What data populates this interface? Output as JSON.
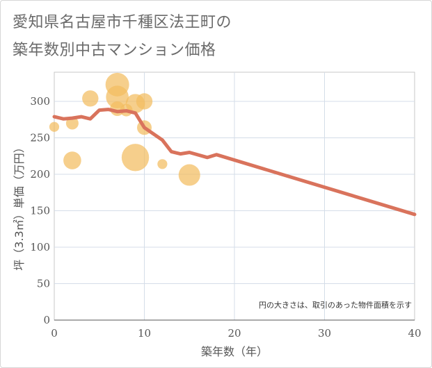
{
  "title_line1": "愛知県名古屋市千種区法王町の",
  "title_line2": "築年数別中古マンション価格",
  "chart_data": {
    "type": "scatter+line",
    "xlabel": "築年数（年）",
    "ylabel": "坪（3.3㎡）単価（万円）",
    "xlim": [
      0,
      40
    ],
    "ylim": [
      0,
      340
    ],
    "x_ticks": [
      0,
      10,
      20,
      30,
      40
    ],
    "y_ticks": [
      0,
      50,
      100,
      150,
      200,
      250,
      300
    ],
    "grid": true,
    "note": "円の大きさは、取引のあった物件面積を示す",
    "bubble_color": "#f3bd5f",
    "line_color": "#d9735c",
    "bubbles": [
      {
        "x": 0,
        "y": 265,
        "size": 1
      },
      {
        "x": 2,
        "y": 270,
        "size": 2
      },
      {
        "x": 2,
        "y": 219,
        "size": 5
      },
      {
        "x": 4,
        "y": 304,
        "size": 4
      },
      {
        "x": 7,
        "y": 323,
        "size": 10
      },
      {
        "x": 7,
        "y": 306,
        "size": 9
      },
      {
        "x": 7,
        "y": 290,
        "size": 3
      },
      {
        "x": 8,
        "y": 288,
        "size": 2
      },
      {
        "x": 9,
        "y": 297,
        "size": 6
      },
      {
        "x": 9,
        "y": 223,
        "size": 14
      },
      {
        "x": 10,
        "y": 300,
        "size": 4
      },
      {
        "x": 10,
        "y": 264,
        "size": 3
      },
      {
        "x": 12,
        "y": 214,
        "size": 1
      },
      {
        "x": 15,
        "y": 199,
        "size": 8
      }
    ],
    "line": [
      {
        "x": 0,
        "y": 279
      },
      {
        "x": 1,
        "y": 276
      },
      {
        "x": 2,
        "y": 277
      },
      {
        "x": 3,
        "y": 279
      },
      {
        "x": 4,
        "y": 276
      },
      {
        "x": 5,
        "y": 288
      },
      {
        "x": 6,
        "y": 289
      },
      {
        "x": 7,
        "y": 286
      },
      {
        "x": 8,
        "y": 287
      },
      {
        "x": 9,
        "y": 284
      },
      {
        "x": 10,
        "y": 264
      },
      {
        "x": 12,
        "y": 247
      },
      {
        "x": 13,
        "y": 231
      },
      {
        "x": 14,
        "y": 228
      },
      {
        "x": 15,
        "y": 230
      },
      {
        "x": 17,
        "y": 223
      },
      {
        "x": 18,
        "y": 227
      },
      {
        "x": 40,
        "y": 145
      }
    ]
  }
}
